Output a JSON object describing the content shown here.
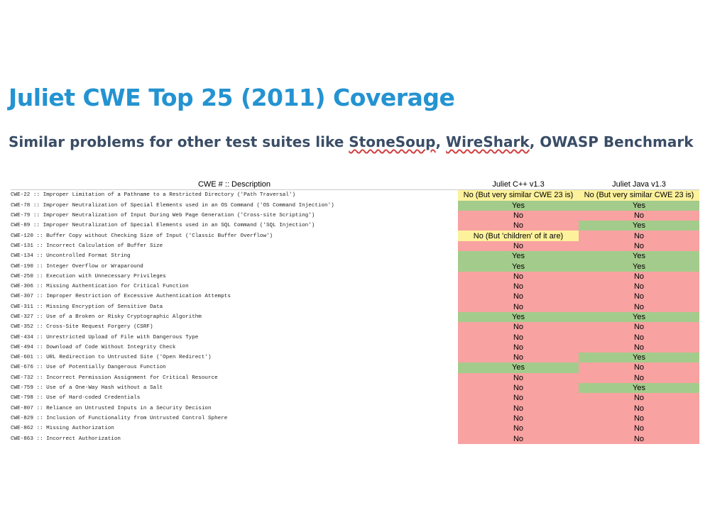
{
  "slide": {
    "title": "Juliet CWE Top 25 (2011) Coverage",
    "subtitle_parts": {
      "before": "Similar problems for other test suites like ",
      "stonesoup": "StoneSoup",
      "sep1": ", ",
      "wireshark": "WireShark",
      "after": ", OWASP Benchmark"
    }
  },
  "table": {
    "headers": {
      "description": "CWE # :: Description",
      "cpp": "Juliet C++ v1.3",
      "java": "Juliet Java v1.3"
    },
    "colors": {
      "yes": "#a3cc8c",
      "no": "#f8a2a2",
      "partial": "#fdf29c"
    },
    "rows": [
      {
        "desc": "CWE-22 :: Improper Limitation of a Pathname to a Restricted Directory ('Path Traversal')",
        "cpp": "No (But very similar CWE 23 is)",
        "cpp_status": "partial",
        "java": "No (But very similar CWE 23 is)",
        "java_status": "partial"
      },
      {
        "desc": "CWE-78 :: Improper Neutralization of Special Elements used in an OS Command ('OS Command Injection')",
        "cpp": "Yes",
        "cpp_status": "yes",
        "java": "Yes",
        "java_status": "yes"
      },
      {
        "desc": "CWE-79 :: Improper Neutralization of Input During Web Page Generation ('Cross-site Scripting')",
        "cpp": "No",
        "cpp_status": "no",
        "java": "No",
        "java_status": "no"
      },
      {
        "desc": "CWE-89 :: Improper Neutralization of Special Elements used in an SQL Command ('SQL Injection')",
        "cpp": "No",
        "cpp_status": "no",
        "java": "Yes",
        "java_status": "yes"
      },
      {
        "desc": "CWE-120 :: Buffer Copy without Checking Size of Input ('Classic Buffer Overflow')",
        "cpp": "No (But 'children' of it are)",
        "cpp_status": "partial",
        "java": "No",
        "java_status": "no"
      },
      {
        "desc": "CWE-131 :: Incorrect Calculation of Buffer Size",
        "cpp": "No",
        "cpp_status": "no",
        "java": "No",
        "java_status": "no"
      },
      {
        "desc": "CWE-134 :: Uncontrolled Format String",
        "cpp": "Yes",
        "cpp_status": "yes",
        "java": "Yes",
        "java_status": "yes"
      },
      {
        "desc": "CWE-190 :: Integer Overflow or Wraparound",
        "cpp": "Yes",
        "cpp_status": "yes",
        "java": "Yes",
        "java_status": "yes"
      },
      {
        "desc": "CWE-250 :: Execution with Unnecessary Privileges",
        "cpp": "No",
        "cpp_status": "no",
        "java": "No",
        "java_status": "no"
      },
      {
        "desc": "CWE-306 :: Missing Authentication for Critical Function",
        "cpp": "No",
        "cpp_status": "no",
        "java": "No",
        "java_status": "no"
      },
      {
        "desc": "CWE-307 :: Improper Restriction of Excessive Authentication Attempts",
        "cpp": "No",
        "cpp_status": "no",
        "java": "No",
        "java_status": "no"
      },
      {
        "desc": "CWE-311 :: Missing Encryption of Sensitive Data",
        "cpp": "No",
        "cpp_status": "no",
        "java": "No",
        "java_status": "no"
      },
      {
        "desc": "CWE-327 :: Use of a Broken or Risky Cryptographic Algorithm",
        "cpp": "Yes",
        "cpp_status": "yes",
        "java": "Yes",
        "java_status": "yes"
      },
      {
        "desc": "CWE-352 :: Cross-Site Request Forgery (CSRF)",
        "cpp": "No",
        "cpp_status": "no",
        "java": "No",
        "java_status": "no"
      },
      {
        "desc": "CWE-434 :: Unrestricted Upload of File with Dangerous Type",
        "cpp": "No",
        "cpp_status": "no",
        "java": "No",
        "java_status": "no"
      },
      {
        "desc": "CWE-494 :: Download of Code Without Integrity Check",
        "cpp": "No",
        "cpp_status": "no",
        "java": "No",
        "java_status": "no"
      },
      {
        "desc": "CWE-601 :: URL Redirection to Untrusted Site ('Open Redirect')",
        "cpp": "No",
        "cpp_status": "no",
        "java": "Yes",
        "java_status": "yes"
      },
      {
        "desc": "CWE-676 :: Use of Potentially Dangerous Function",
        "cpp": "Yes",
        "cpp_status": "yes",
        "java": "No",
        "java_status": "no"
      },
      {
        "desc": "CWE-732 :: Incorrect Permission Assignment for Critical Resource",
        "cpp": "No",
        "cpp_status": "no",
        "java": "No",
        "java_status": "no"
      },
      {
        "desc": "CWE-759 :: Use of a One-Way Hash without a Salt",
        "cpp": "No",
        "cpp_status": "no",
        "java": "Yes",
        "java_status": "yes"
      },
      {
        "desc": "CWE-798 :: Use of Hard-coded Credentials",
        "cpp": "No",
        "cpp_status": "no",
        "java": "No",
        "java_status": "no"
      },
      {
        "desc": "CWE-807 :: Reliance on Untrusted Inputs in a Security Decision",
        "cpp": "No",
        "cpp_status": "no",
        "java": "No",
        "java_status": "no"
      },
      {
        "desc": "CWE-829 :: Inclusion of Functionality from Untrusted Control Sphere",
        "cpp": "No",
        "cpp_status": "no",
        "java": "No",
        "java_status": "no"
      },
      {
        "desc": "CWE-862 :: Missing Authorization",
        "cpp": "No",
        "cpp_status": "no",
        "java": "No",
        "java_status": "no"
      },
      {
        "desc": "CWE-863 :: Incorrect Authorization",
        "cpp": "No",
        "cpp_status": "no",
        "java": "No",
        "java_status": "no"
      }
    ]
  }
}
